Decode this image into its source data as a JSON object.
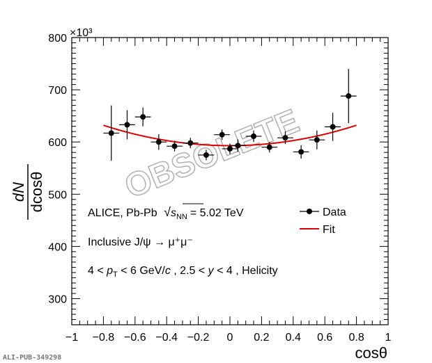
{
  "chart_data": {
    "type": "scatter",
    "xlabel": "cosθ",
    "ylabel": "dN / dcosθ",
    "ylabel_num": "dN",
    "ylabel_den": "dcosθ",
    "y_multiplier": "×10³",
    "xlim": [
      -1,
      1
    ],
    "ylim": [
      250,
      800
    ],
    "xticks": [
      "−1",
      "−0.8",
      "−0.6",
      "−0.4",
      "−0.2",
      "0",
      "0.2",
      "0.4",
      "0.6",
      "0.8",
      "1"
    ],
    "yticks": [
      "300",
      "400",
      "500",
      "600",
      "700",
      "800"
    ],
    "series": [
      {
        "name": "Data",
        "x": [
          -0.75,
          -0.65,
          -0.55,
          -0.45,
          -0.35,
          -0.25,
          -0.15,
          -0.05,
          0.0,
          0.05,
          0.15,
          0.25,
          0.35,
          0.45,
          0.55,
          0.65,
          0.75
        ],
        "y": [
          617,
          633,
          648,
          600,
          592,
          598,
          575,
          614,
          587,
          593,
          611,
          590,
          608,
          581,
          604,
          629,
          688
        ],
        "yerr": [
          53,
          28,
          18,
          15,
          10,
          10,
          10,
          10,
          10,
          12,
          11,
          10,
          12,
          13,
          18,
          27,
          52
        ],
        "xerr": [
          0.05,
          0.05,
          0.05,
          0.05,
          0.05,
          0.05,
          0.05,
          0.05,
          0.05,
          0.05,
          0.05,
          0.05,
          0.05,
          0.05,
          0.05,
          0.05,
          0.05
        ]
      },
      {
        "name": "Fit",
        "x": [
          -0.8,
          -0.6,
          -0.4,
          -0.2,
          0.0,
          0.2,
          0.4,
          0.6,
          0.8
        ],
        "y": [
          632,
          616,
          604,
          596,
          593,
          595,
          603,
          615,
          632
        ]
      }
    ],
    "legend": {
      "data": "Data",
      "fit": "Fit",
      "position": "top-right"
    },
    "annotations": {
      "line1_prefix": "ALICE, Pb-Pb",
      "line1_sqrt": "s",
      "line1_sub": "NN",
      "line1_suffix": "= 5.02 TeV",
      "line2": "Inclusive J/ψ → μ⁺μ⁻",
      "line3_a": "4 < ",
      "line3_p": "p",
      "line3_T": "T",
      "line3_b": " < 6 GeV/",
      "line3_c": "c",
      "line3_d": " , 2.5 < ",
      "line3_y": "y",
      "line3_e": " < 4 , Helicity"
    },
    "watermark": "OBSOLETE",
    "grid": false
  },
  "figure_id": "ALI-PUB-349298",
  "colors": {
    "data": "#000000",
    "fit": "#dd0000",
    "axis": "#000000",
    "watermark_outline": "#b0b0b0"
  }
}
